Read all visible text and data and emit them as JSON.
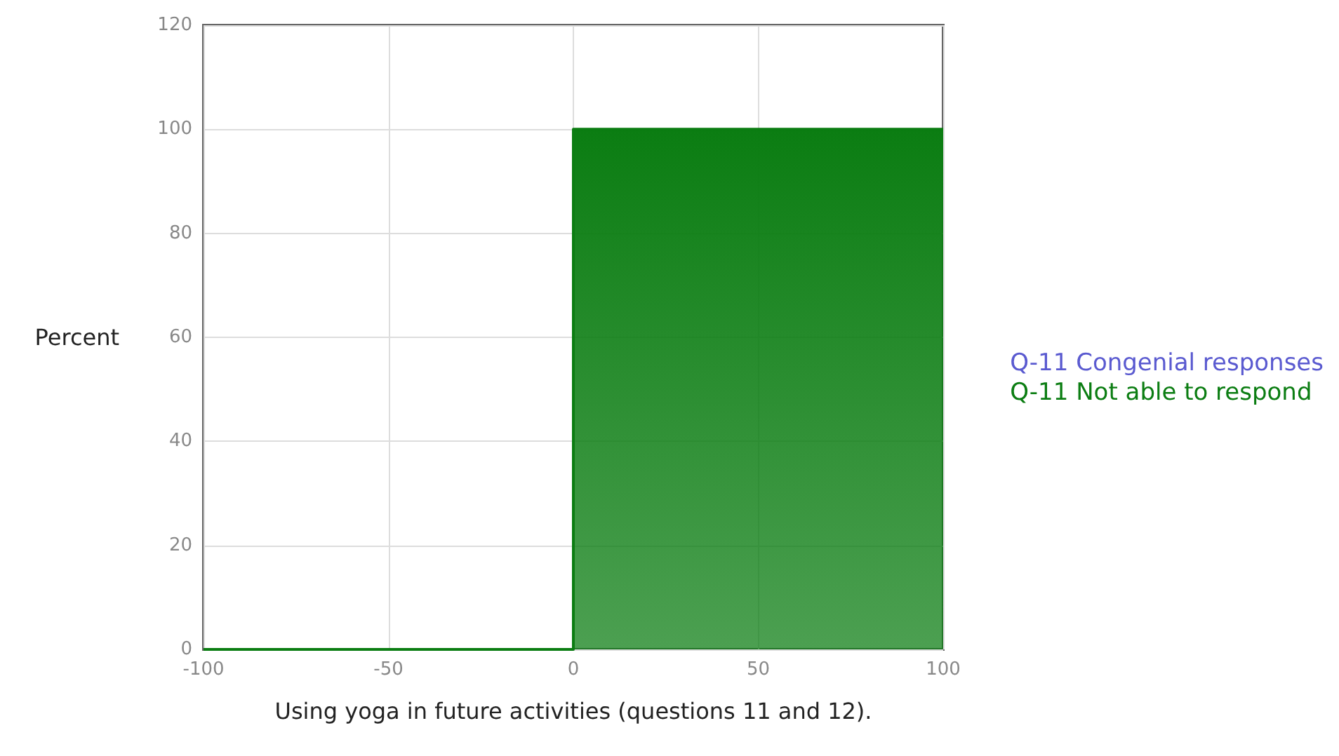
{
  "chart_data": {
    "type": "area",
    "xlabel": "Using yoga in future activities (questions 11 and 12).",
    "ylabel": "Percent",
    "x": [
      -100,
      0,
      0,
      100
    ],
    "series": [
      {
        "name": "Q-11 Congenial responses",
        "color": "#5a5ad0",
        "type": "line",
        "values": [
          null,
          null,
          null,
          null
        ]
      },
      {
        "name": "Q-11 Not able to respond",
        "color": "#0b7d12",
        "values": [
          0,
          0,
          100,
          100
        ]
      }
    ],
    "xlim": [
      -100,
      100
    ],
    "xticks": [
      -100,
      -50,
      0,
      50,
      100
    ],
    "ylim": [
      0,
      120
    ],
    "yticks": [
      0,
      20,
      40,
      60,
      80,
      100,
      120
    ],
    "grid": true,
    "legend": "right",
    "marker": "none"
  }
}
